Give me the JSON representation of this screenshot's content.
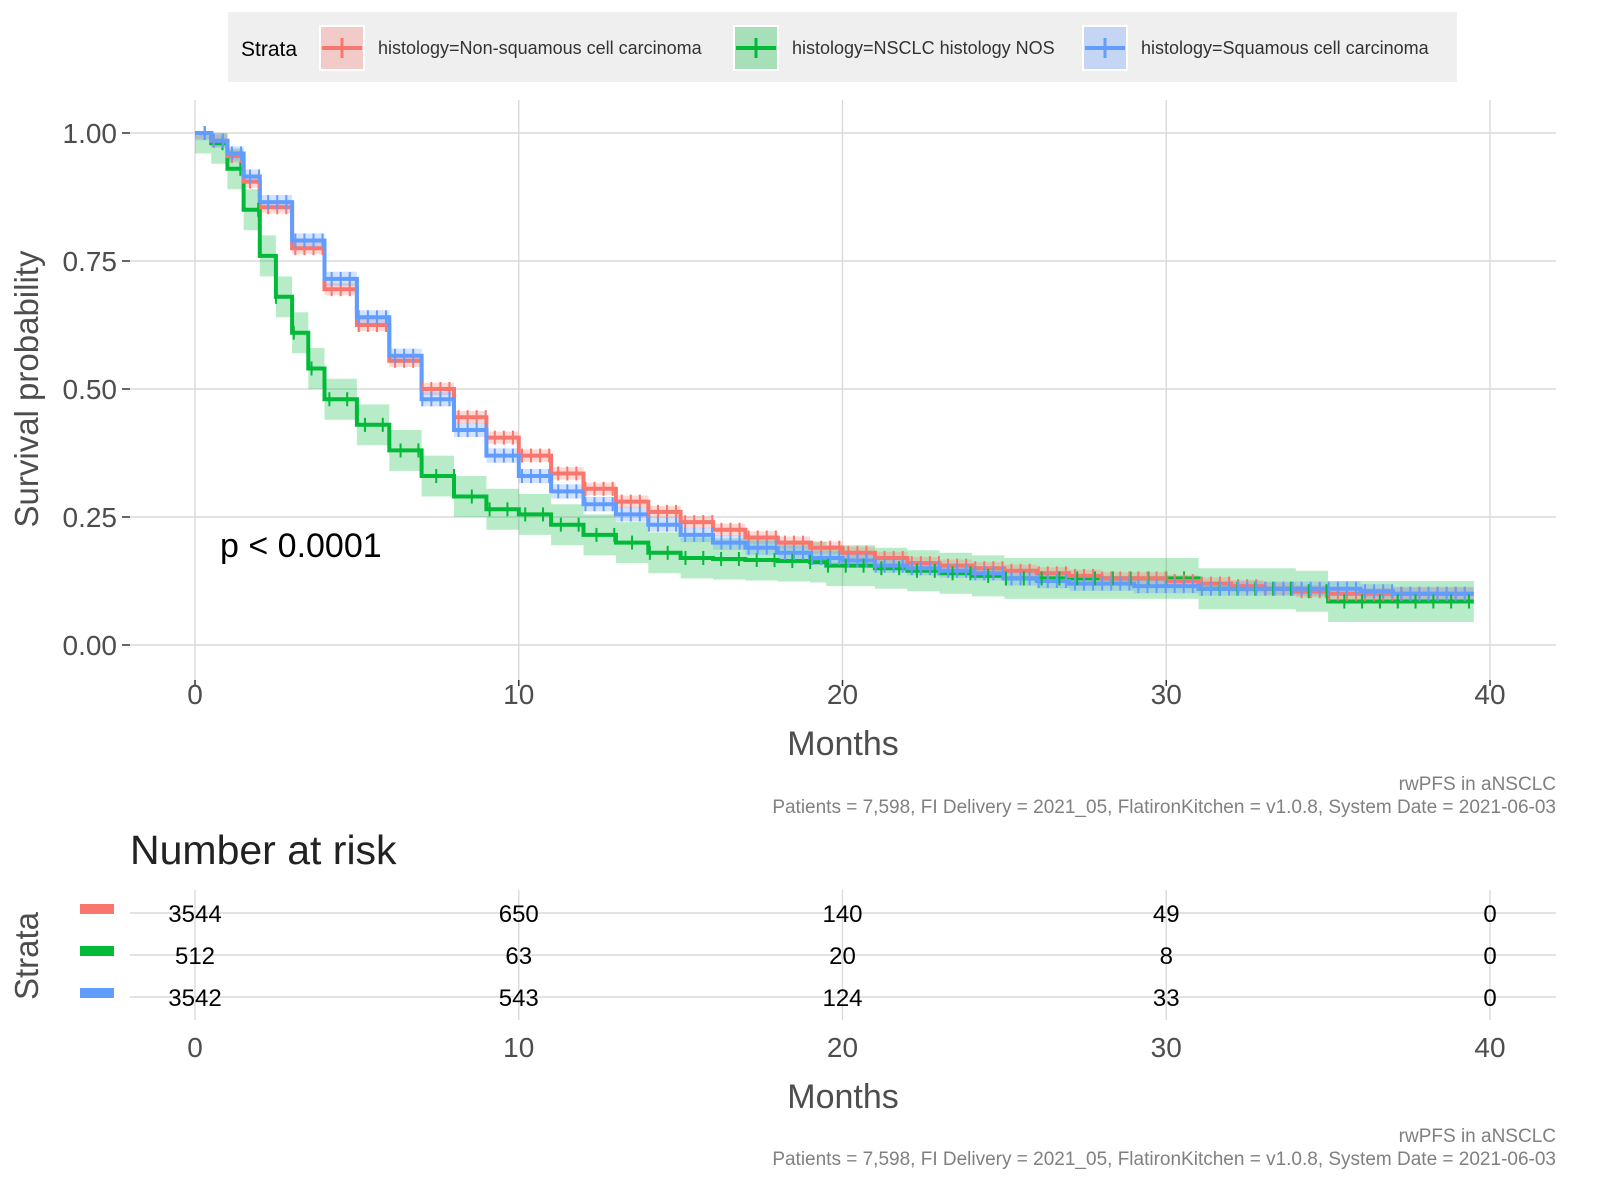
{
  "colors": {
    "non_squamous": "#F8766D",
    "nos": "#00BA38",
    "squamous": "#619CFF",
    "grid": "#DADADA",
    "legend_bg": "#EFEFEF",
    "axis_text": "#4D4D4D",
    "caption": "#808080"
  },
  "legend": {
    "title": "Strata",
    "items": [
      {
        "label": "histology=Non-squamous cell carcinoma",
        "color_key": "non_squamous"
      },
      {
        "label": "histology=NSCLC histology NOS",
        "color_key": "nos"
      },
      {
        "label": "histology=Squamous cell carcinoma",
        "color_key": "squamous"
      }
    ]
  },
  "pvalue": "p < 0.0001",
  "caption": {
    "line1": "rwPFS in aNSCLC",
    "line2": "Patients = 7,598, FI Delivery = 2021_05, FlatironKitchen = v1.0.8, System Date = 2021-06-03"
  },
  "risk_table": {
    "title": "Number at risk",
    "ylabel": "Strata",
    "xlabel": "Months",
    "x_ticks": [
      0,
      10,
      20,
      30,
      40
    ],
    "rows": [
      {
        "color_key": "non_squamous",
        "values": [
          "3544",
          "650",
          "140",
          "49",
          "0"
        ]
      },
      {
        "color_key": "nos",
        "values": [
          "512",
          "63",
          "20",
          "8",
          "0"
        ]
      },
      {
        "color_key": "squamous",
        "values": [
          "3542",
          "543",
          "124",
          "33",
          "0"
        ]
      }
    ]
  },
  "chart_data": {
    "type": "line",
    "subtype": "kaplan-meier",
    "xlabel": "Months",
    "ylabel": "Survival probability",
    "xlim": [
      0,
      40
    ],
    "ylim": [
      0,
      1
    ],
    "x_ticks": [
      0,
      10,
      20,
      30,
      40
    ],
    "y_ticks": [
      "0.00",
      "0.25",
      "0.50",
      "0.75",
      "1.00"
    ],
    "grid": true,
    "legend_position": "top",
    "series": [
      {
        "name": "histology=Non-squamous cell carcinoma",
        "color_key": "non_squamous",
        "x": [
          0,
          0.5,
          1,
          1.5,
          2,
          3,
          4,
          5,
          6,
          7,
          8,
          9,
          10,
          11,
          12,
          13,
          14,
          15,
          16,
          17,
          18,
          19,
          20,
          21,
          22,
          23,
          24,
          25,
          26,
          27,
          28,
          29,
          30,
          31,
          32,
          33,
          34,
          35,
          36,
          37,
          38,
          39,
          39.5
        ],
        "y": [
          1.0,
          0.985,
          0.955,
          0.905,
          0.855,
          0.775,
          0.695,
          0.625,
          0.555,
          0.5,
          0.445,
          0.405,
          0.37,
          0.335,
          0.305,
          0.28,
          0.26,
          0.24,
          0.225,
          0.21,
          0.2,
          0.19,
          0.18,
          0.17,
          0.16,
          0.155,
          0.15,
          0.145,
          0.14,
          0.135,
          0.13,
          0.13,
          0.125,
          0.12,
          0.115,
          0.11,
          0.105,
          0.1,
          0.1,
          0.1,
          0.1,
          0.1,
          0.1
        ],
        "ci_halfwidth": 0.012
      },
      {
        "name": "histology=NSCLC histology NOS",
        "color_key": "nos",
        "x": [
          0,
          0.5,
          1,
          1.5,
          2,
          2.5,
          3,
          3.5,
          4,
          5,
          6,
          7,
          8,
          9,
          10,
          11,
          12,
          13,
          14,
          15,
          16,
          17,
          18,
          19,
          19.5,
          20,
          21,
          22,
          23,
          24,
          25,
          26,
          27,
          28,
          29,
          30,
          31,
          32,
          33,
          34,
          35,
          36,
          37,
          38,
          39,
          39.5
        ],
        "y": [
          1.0,
          0.98,
          0.93,
          0.85,
          0.76,
          0.68,
          0.61,
          0.54,
          0.48,
          0.43,
          0.38,
          0.33,
          0.29,
          0.265,
          0.255,
          0.235,
          0.215,
          0.2,
          0.18,
          0.17,
          0.168,
          0.166,
          0.164,
          0.162,
          0.155,
          0.155,
          0.15,
          0.145,
          0.14,
          0.135,
          0.13,
          0.13,
          0.13,
          0.13,
          0.13,
          0.13,
          0.11,
          0.11,
          0.11,
          0.105,
          0.085,
          0.085,
          0.085,
          0.085,
          0.085,
          0.085
        ],
        "ci_halfwidth": 0.04
      },
      {
        "name": "histology=Squamous cell carcinoma",
        "color_key": "squamous",
        "x": [
          0,
          0.5,
          1,
          1.5,
          2,
          3,
          4,
          5,
          6,
          7,
          8,
          9,
          10,
          11,
          12,
          13,
          14,
          15,
          16,
          17,
          18,
          19,
          20,
          21,
          22,
          23,
          24,
          25,
          26,
          27,
          28,
          29,
          30,
          31,
          32,
          33,
          34,
          35,
          36,
          37,
          38,
          39,
          39.5
        ],
        "y": [
          1.0,
          0.985,
          0.96,
          0.915,
          0.865,
          0.79,
          0.715,
          0.64,
          0.565,
          0.48,
          0.42,
          0.37,
          0.33,
          0.3,
          0.275,
          0.255,
          0.235,
          0.215,
          0.2,
          0.19,
          0.18,
          0.17,
          0.165,
          0.155,
          0.15,
          0.145,
          0.14,
          0.13,
          0.125,
          0.12,
          0.12,
          0.115,
          0.115,
          0.11,
          0.11,
          0.11,
          0.11,
          0.11,
          0.105,
          0.1,
          0.1,
          0.1,
          0.1
        ],
        "ci_halfwidth": 0.014
      }
    ]
  }
}
